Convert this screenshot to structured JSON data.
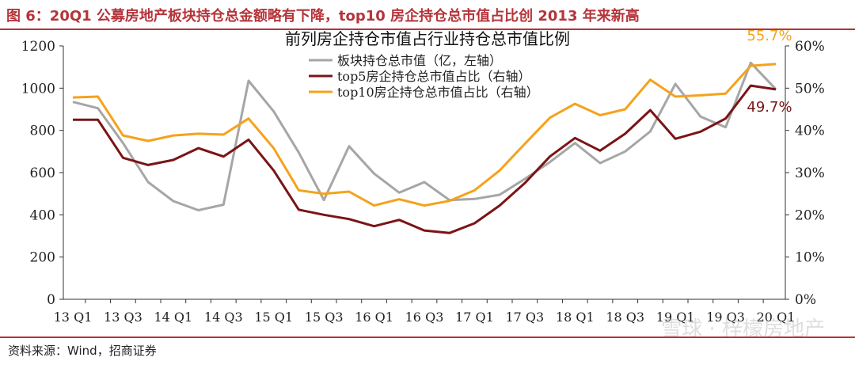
{
  "header": {
    "title": "图 6：20Q1 公募房地产板块持仓总金额略有下降，top10 房企持仓总市值占比创 2013 年来新高"
  },
  "source": "资料来源：Wind，招商证券",
  "watermark": "雪球 · 梓檬房地产",
  "chart_data": {
    "type": "line",
    "title": "前列房企持仓市值占行业持仓总市值比例",
    "categories": [
      "13 Q1",
      "13 Q2",
      "13 Q3",
      "13 Q4",
      "14 Q1",
      "14 Q2",
      "14 Q3",
      "14 Q4",
      "15 Q1",
      "15 Q2",
      "15 Q3",
      "15 Q4",
      "16 Q1",
      "16 Q2",
      "16 Q3",
      "16 Q4",
      "17 Q1",
      "17 Q2",
      "17 Q3",
      "17 Q4",
      "18 Q1",
      "18 Q2",
      "18 Q3",
      "18 Q4",
      "19 Q1",
      "19 Q2",
      "19 Q3",
      "19 Q4",
      "20 Q1"
    ],
    "x_tick_labels": [
      "13 Q1",
      "13 Q3",
      "14 Q1",
      "14 Q3",
      "15 Q1",
      "15 Q3",
      "16 Q1",
      "16 Q3",
      "17 Q1",
      "17 Q3",
      "18 Q1",
      "18 Q3",
      "19 Q1",
      "19 Q3",
      "20 Q1"
    ],
    "y_left": {
      "ylim": [
        0,
        1200
      ],
      "ticks": [
        "0",
        "200",
        "400",
        "600",
        "800",
        "1000",
        "1200"
      ]
    },
    "y_right": {
      "ylim": [
        0,
        60
      ],
      "ticks": [
        "0%",
        "10%",
        "20%",
        "30%",
        "40%",
        "50%",
        "60%"
      ]
    },
    "series": [
      {
        "name": "板块持仓总市值（亿，左轴）",
        "axis": "left",
        "color": "#a6a6a6",
        "values": [
          935,
          905,
          740,
          555,
          465,
          422,
          448,
          1035,
          890,
          695,
          470,
          725,
          595,
          505,
          555,
          470,
          475,
          495,
          570,
          650,
          740,
          645,
          700,
          795,
          1020,
          865,
          815,
          1120,
          995
        ]
      },
      {
        "name": "top5房企持仓总市值占比（右轴）",
        "axis": "right",
        "color": "#7b1416",
        "values": [
          42.5,
          42.5,
          33.5,
          31.8,
          33.0,
          35.8,
          33.8,
          37.8,
          30.5,
          21.2,
          20.0,
          19.0,
          17.3,
          18.8,
          16.3,
          15.7,
          18.0,
          22.2,
          27.5,
          33.8,
          38.2,
          35.2,
          39.2,
          44.8,
          38.0,
          39.7,
          42.8,
          50.6,
          49.7
        ]
      },
      {
        "name": "top10房企持仓总市值占比（右轴）",
        "axis": "right",
        "color": "#f5a21c",
        "values": [
          47.8,
          48.0,
          38.8,
          37.5,
          38.8,
          39.2,
          39.0,
          42.8,
          35.8,
          25.8,
          25.0,
          25.5,
          22.2,
          23.7,
          22.2,
          23.3,
          25.8,
          30.5,
          36.8,
          43.0,
          46.3,
          43.6,
          45.0,
          52.0,
          48.0,
          48.3,
          48.7,
          55.3,
          55.7
        ]
      }
    ],
    "annotations": [
      {
        "text": "55.7%",
        "series": 2,
        "index": 28,
        "color": "#f5a21c"
      },
      {
        "text": "49.7%",
        "series": 1,
        "index": 28,
        "color": "#7b1416"
      }
    ],
    "grid": false,
    "legend": "top-center"
  }
}
